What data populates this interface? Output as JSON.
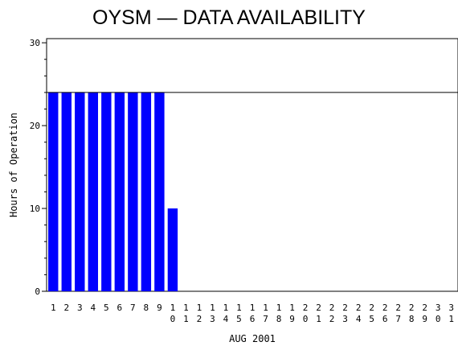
{
  "chart_data": {
    "type": "bar",
    "title": "OYSM — DATA AVAILABILITY",
    "xlabel": "AUG 2001",
    "ylabel": "Hours of Operation",
    "ylim": [
      0,
      30.5
    ],
    "yticks": [
      0,
      10,
      20,
      30
    ],
    "reference_line": 24,
    "bar_color": "#0000ff",
    "categories": [
      "1",
      "2",
      "3",
      "4",
      "5",
      "6",
      "7",
      "8",
      "9",
      "10",
      "11",
      "12",
      "13",
      "14",
      "15",
      "16",
      "17",
      "18",
      "19",
      "20",
      "21",
      "22",
      "23",
      "24",
      "25",
      "26",
      "27",
      "28",
      "29",
      "30",
      "31"
    ],
    "values": [
      24,
      24,
      24,
      24,
      24,
      24,
      24,
      24,
      24,
      10,
      0,
      0,
      0,
      0,
      0,
      0,
      0,
      0,
      0,
      0,
      0,
      0,
      0,
      0,
      0,
      0,
      0,
      0,
      0,
      0,
      0
    ]
  }
}
